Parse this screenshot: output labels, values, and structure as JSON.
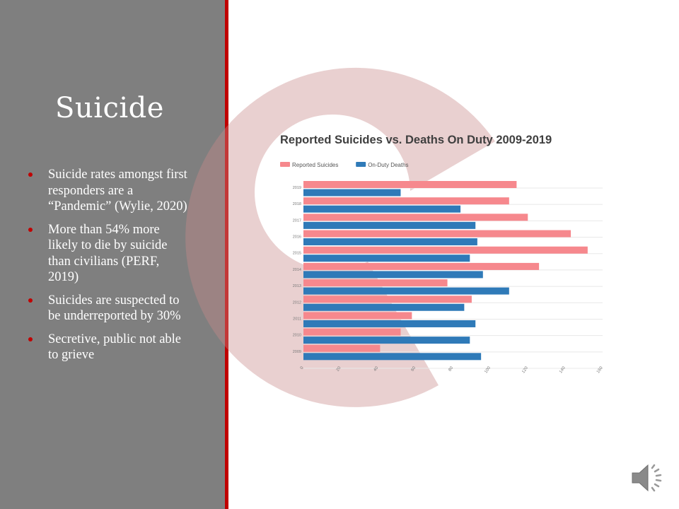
{
  "slide": {
    "title": "Suicide",
    "bullets": [
      "Suicide rates amongst first responders are a “Pandemic” (Wylie, 2020)",
      "More than 54% more likely to die by suicide than civilians (PERF, 2019)",
      "Suicides are suspected to be underreported by 30%",
      "Secretive, public not able to grieve"
    ]
  },
  "colors": {
    "panel": "#7f7f7f",
    "accent": "#c00000",
    "watermark": "#c8898a",
    "series_reported": "#f6888d",
    "series_on_duty": "#2f7ab8"
  },
  "icons": [
    "speaker-icon"
  ],
  "chart_data": {
    "type": "bar",
    "orientation": "horizontal",
    "title": "Reported Suicides vs. Deaths On Duty 2009-2019",
    "categories": [
      "2019",
      "2018",
      "2017",
      "2016",
      "2015",
      "2014",
      "2013",
      "2012",
      "2011",
      "2010",
      "2009"
    ],
    "series": [
      {
        "name": "Reported Suicides",
        "values": [
          114,
          110,
          120,
          143,
          152,
          126,
          77,
          90,
          58,
          52,
          41
        ]
      },
      {
        "name": "On-Duty Deaths",
        "values": [
          52,
          84,
          92,
          93,
          89,
          96,
          110,
          86,
          92,
          89,
          95
        ]
      }
    ],
    "x_ticks": [
      "0",
      "20",
      "40",
      "60",
      "80",
      "100",
      "120",
      "140",
      "160"
    ],
    "xlim": [
      0,
      160
    ],
    "legend_position": "top-left",
    "grid": true
  }
}
